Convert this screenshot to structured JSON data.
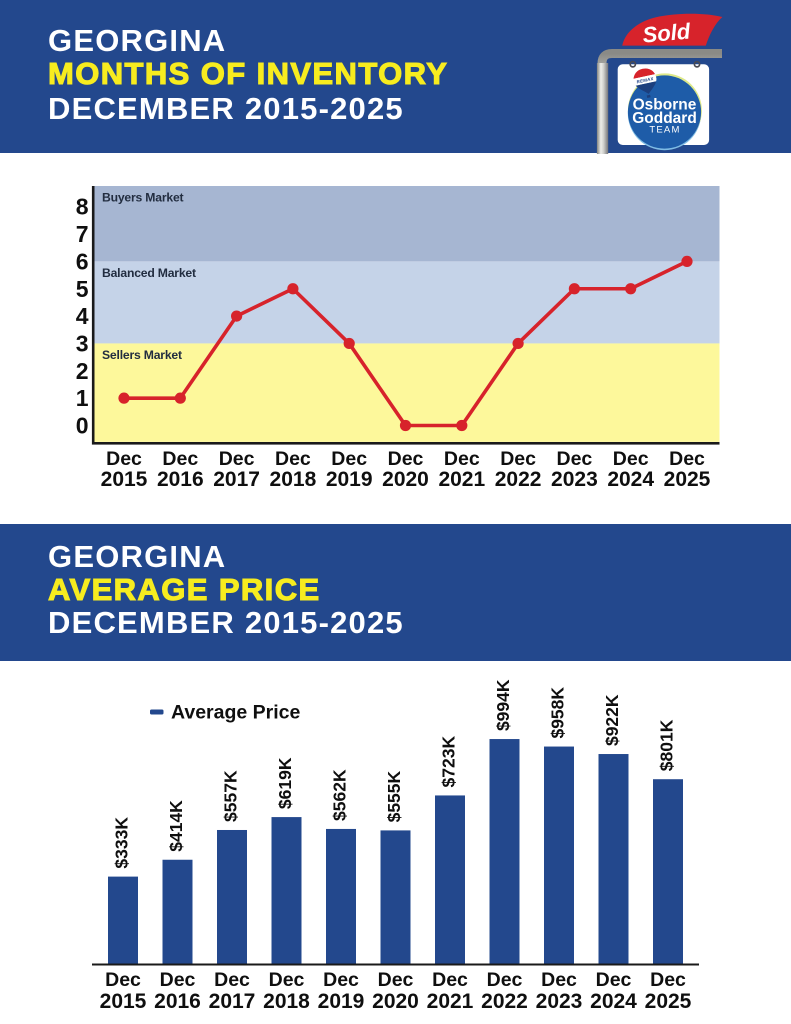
{
  "header_top": {
    "line1": "GEORGINA",
    "line2": "MONTHS OF INVENTORY",
    "line3": "DECEMBER 2015-2025"
  },
  "header_bottom": {
    "line1": "GEORGINA",
    "line2": "AVERAGE PRICE",
    "line3": "DECEMBER 2015-2025"
  },
  "logo": {
    "ribbon_label": "Sold",
    "balloon_label": "REMAX",
    "sign_line1": "Osborne",
    "sign_line2": "Goddard",
    "sign_line3": "TEAM"
  },
  "colors": {
    "banner_blue": "#23488D",
    "bar_blue": "#23488D",
    "accent_yellow": "#F7EC1F",
    "zone_buyers": "#A6B6D2",
    "zone_balanced": "#C5D3E8",
    "zone_sellers": "#FDF89B",
    "line_red": "#D7232B",
    "axis_black": "#1A1A1A",
    "zone_label_navy": "#222D40",
    "text_black": "#0F0F0F",
    "ribbon_red": "#D7232B",
    "circle_blue": "#1E5CA8",
    "balloon_navy": "#1C3F7E"
  },
  "chart_data": [
    {
      "type": "line",
      "title": "Georgina Months of Inventory December 2015-2025",
      "categories": [
        "Dec 2015",
        "Dec 2016",
        "Dec 2017",
        "Dec 2018",
        "Dec 2019",
        "Dec 2020",
        "Dec 2021",
        "Dec 2022",
        "Dec 2023",
        "Dec 2024",
        "Dec 2025"
      ],
      "values": [
        1,
        1,
        4,
        5,
        3,
        0,
        0,
        3,
        5,
        5,
        6
      ],
      "ylim": [
        0,
        8
      ],
      "ytick_step": 1,
      "zones": [
        {
          "label": "Buyers Market",
          "from": 6,
          "to": 8.8
        },
        {
          "label": "Balanced Market",
          "from": 3,
          "to": 6
        },
        {
          "label": "Sellers Market",
          "from": -0.6,
          "to": 3
        }
      ],
      "grid": false,
      "legend": null
    },
    {
      "type": "bar",
      "title": "Georgina Average Price December 2015-2025",
      "categories": [
        "Dec 2015",
        "Dec 2016",
        "Dec 2017",
        "Dec 2018",
        "Dec 2019",
        "Dec 2020",
        "Dec 2021",
        "Dec 2022",
        "Dec 2023",
        "Dec 2024",
        "Dec 2025"
      ],
      "values": [
        333,
        414,
        557,
        619,
        562,
        555,
        723,
        994,
        958,
        922,
        801
      ],
      "value_labels": [
        "$333K",
        "$414K",
        "$557K",
        "$619K",
        "$562K",
        "$555K",
        "$723K",
        "$994K",
        "$958K",
        "$922K",
        "$801K"
      ],
      "legend": {
        "label": "Average Price",
        "position": "top-left"
      },
      "grid": false
    }
  ]
}
